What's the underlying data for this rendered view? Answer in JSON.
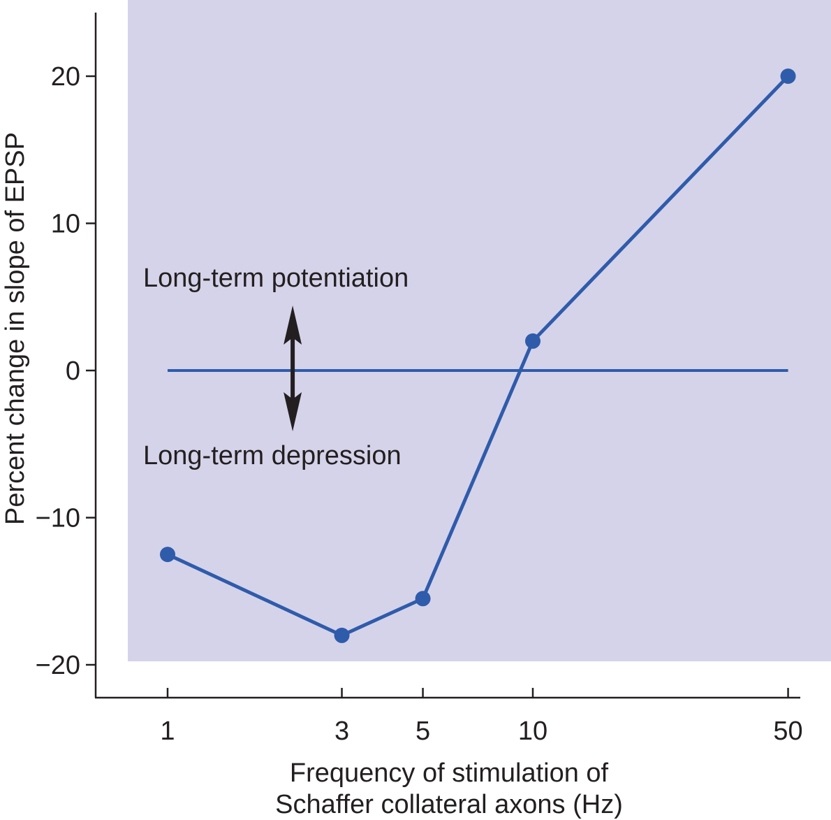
{
  "chart_data": {
    "type": "line",
    "xlabel": [
      "Frequency of stimulation of",
      "Schaffer collateral axons (Hz)"
    ],
    "ylabel": "Percent change in slope of EPSP",
    "x_scale": "log",
    "x_ticks": [
      1,
      3,
      5,
      10,
      50
    ],
    "x_tick_labels": [
      "1",
      "3",
      "5",
      "10",
      "50"
    ],
    "y_ticks": [
      20,
      10,
      0,
      -10,
      -20
    ],
    "y_tick_labels": [
      "20",
      "10",
      "0",
      "−10",
      "−20"
    ],
    "ylim": [
      -20,
      20
    ],
    "grid": false,
    "plot_background": "#d5d3e9",
    "series_color": "#2f5bab",
    "series": [
      {
        "x": [
          1,
          3,
          5,
          10,
          50
        ],
        "y": [
          -12.5,
          -18,
          -15.5,
          2,
          20
        ]
      }
    ],
    "reference_line": {
      "y": 0,
      "x_range": [
        1,
        50
      ]
    },
    "annotations": {
      "ltp": "Long-term potentiation",
      "ltd": "Long-term depression"
    },
    "arrow_x": 2.2
  }
}
